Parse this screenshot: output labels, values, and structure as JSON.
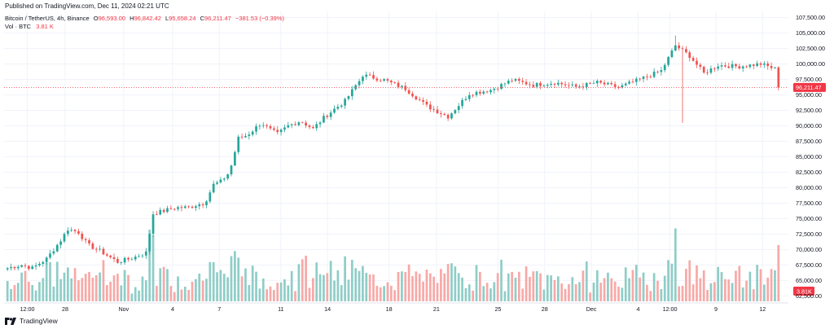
{
  "header": {
    "published": "Published on TradingView.com, Dec 11, 2024 02:21 UTC"
  },
  "legend": {
    "symbol": "Bitcoin / TetherUS, 4h, Binance",
    "o_label": "O",
    "o_value": "96,593.00",
    "h_label": "H",
    "h_value": "96,842.42",
    "l_label": "L",
    "l_value": "95,658.24",
    "c_label": "C",
    "c_value": "96,211.47",
    "change": "−381.53 (−0.39%)",
    "vol_label": "Vol · BTC",
    "vol_value": "3.81 K"
  },
  "footer": {
    "brand": "TradingView"
  },
  "colors": {
    "up": "#26a69a",
    "down": "#ef5350",
    "up_vol": "#8fcdc7",
    "down_vol": "#f7a9a7",
    "grid": "#f0f3fa",
    "price_line": "#f23645",
    "text": "#131722"
  },
  "chart_data": {
    "type": "candlestick",
    "title": "Bitcoin / TetherUS, 4h, Binance",
    "last_price": 96211.47,
    "last_price_label": "96,211.47",
    "last_volume_label": "3.81K",
    "ylim": [
      61500,
      108500
    ],
    "yticks": [
      62500,
      65000,
      67500,
      70000,
      72500,
      75000,
      77500,
      80000,
      82500,
      85000,
      87500,
      90000,
      92500,
      95000,
      97500,
      100000,
      102500,
      105000,
      107500
    ],
    "ytick_labels": [
      "62,500.00",
      "65,000.00",
      "67,500.00",
      "70,000.00",
      "72,500.00",
      "75,000.00",
      "77,500.00",
      "80,000.00",
      "82,500.00",
      "85,000.00",
      "87,500.00",
      "90,000.00",
      "92,500.00",
      "95,000.00",
      "97,500.00",
      "100,000.00",
      "102,500.00",
      "105,000.00",
      "107,500.00"
    ],
    "xticks": [
      {
        "label": "12:00",
        "pos": 0.027
      },
      {
        "label": "28",
        "pos": 0.078
      },
      {
        "label": "Nov",
        "pos": 0.157
      },
      {
        "label": "4",
        "pos": 0.223
      },
      {
        "label": "7",
        "pos": 0.286
      },
      {
        "label": "11",
        "pos": 0.369
      },
      {
        "label": "14",
        "pos": 0.432
      },
      {
        "label": "18",
        "pos": 0.515
      },
      {
        "label": "21",
        "pos": 0.579
      },
      {
        "label": "25",
        "pos": 0.662
      },
      {
        "label": "28",
        "pos": 0.725
      },
      {
        "label": "Dec",
        "pos": 0.788
      },
      {
        "label": "4",
        "pos": 0.851
      },
      {
        "label": "12:00",
        "pos": 0.894
      },
      {
        "label": "9",
        "pos": 0.956
      },
      {
        "label": "12",
        "pos": 1.019
      }
    ],
    "candle_count": 218,
    "anchors": [
      [
        0,
        67000
      ],
      [
        8,
        67500
      ],
      [
        14,
        67000
      ],
      [
        22,
        68500
      ],
      [
        30,
        71500
      ],
      [
        34,
        73300
      ],
      [
        40,
        72800
      ],
      [
        45,
        70800
      ],
      [
        52,
        69800
      ],
      [
        62,
        68000
      ],
      [
        70,
        68600
      ],
      [
        78,
        69500
      ],
      [
        82,
        75800
      ],
      [
        95,
        76800
      ],
      [
        102,
        76800
      ],
      [
        107,
        77300
      ],
      [
        111,
        77500
      ],
      [
        116,
        80500
      ],
      [
        120,
        81000
      ],
      [
        125,
        82500
      ],
      [
        130,
        88000
      ],
      [
        135,
        88500
      ],
      [
        143,
        90500
      ],
      [
        147,
        89500
      ],
      [
        152,
        88700
      ],
      [
        158,
        90000
      ],
      [
        165,
        90800
      ],
      [
        172,
        89500
      ],
      [
        178,
        91300
      ],
      [
        184,
        92700
      ],
      [
        190,
        94000
      ],
      [
        196,
        96500
      ],
      [
        200,
        98000
      ],
      [
        205,
        99000
      ],
      [
        210,
        98700
      ],
      [
        214,
        97600
      ]
    ],
    "extra_anchors_note": "second half of series continues below",
    "anchors_b": [
      [
        0,
        98200
      ],
      [
        6,
        97400
      ],
      [
        12,
        96000
      ],
      [
        18,
        93200
      ],
      [
        24,
        91500
      ],
      [
        30,
        95200
      ],
      [
        36,
        95800
      ],
      [
        42,
        97400
      ],
      [
        48,
        96600
      ],
      [
        54,
        97000
      ],
      [
        60,
        96300
      ],
      [
        66,
        97000
      ],
      [
        72,
        96200
      ],
      [
        78,
        97500
      ],
      [
        84,
        98900
      ],
      [
        88,
        103000
      ],
      [
        92,
        101300
      ],
      [
        96,
        98500
      ],
      [
        100,
        99800
      ],
      [
        106,
        99600
      ],
      [
        112,
        100000
      ],
      [
        118,
        98800
      ],
      [
        122,
        97100
      ],
      [
        127,
        97000
      ],
      [
        130,
        96211
      ]
    ],
    "split_index": 100,
    "volume_max_k": 60
  }
}
